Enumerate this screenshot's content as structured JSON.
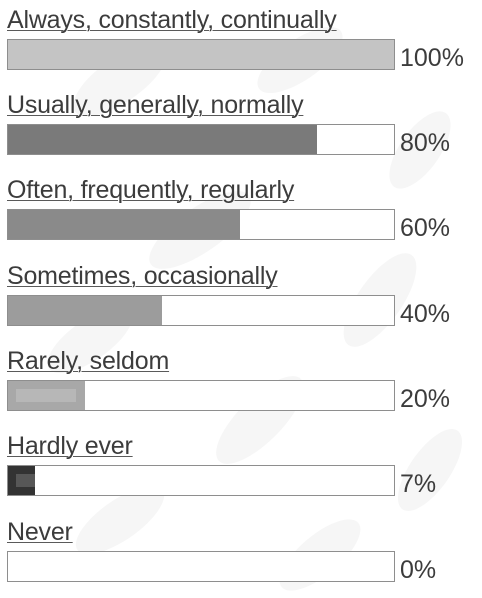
{
  "chart_data": {
    "type": "bar",
    "orientation": "horizontal",
    "categories": [
      "Always, constantly, continually",
      "Usually, generally, normally",
      "Often, frequently, regularly",
      "Sometimes, occasionally",
      "Rarely, seldom",
      "Hardly ever",
      "Never"
    ],
    "values": [
      100,
      80,
      60,
      40,
      20,
      7,
      0
    ],
    "value_labels": [
      "100%",
      "80%",
      "60%",
      "40%",
      "20%",
      "7%",
      "0%"
    ],
    "xlim": [
      0,
      100
    ],
    "colors": [
      "#c4c4c4",
      "#7a7a7a",
      "#8a8a8a",
      "#9c9c9c",
      "#a8a8a8",
      "#333333",
      "#ffffff"
    ],
    "grid": false,
    "legend": "none"
  }
}
